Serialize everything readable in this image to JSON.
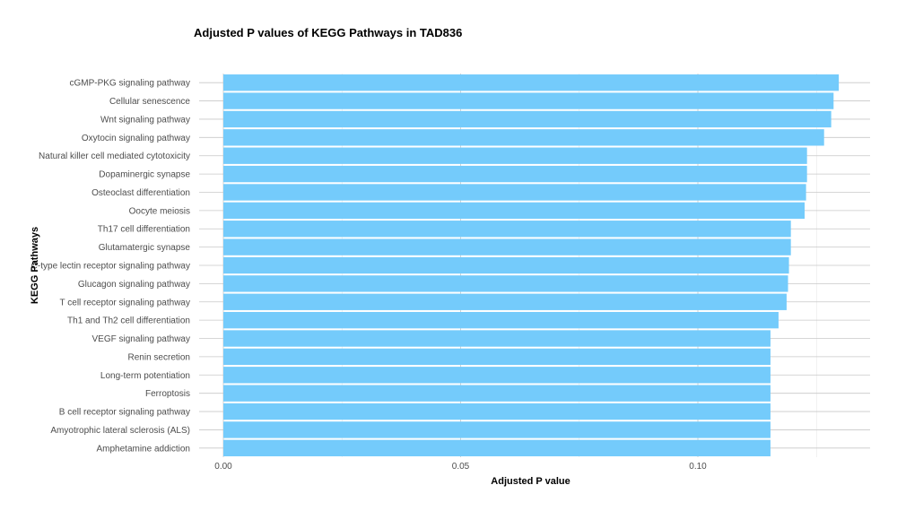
{
  "chart_data": {
    "type": "bar",
    "orientation": "horizontal",
    "title": "Adjusted P values of KEGG Pathways in TAD836",
    "xlabel": "Adjusted P value",
    "ylabel": "KEGG Pathways",
    "xlim": [
      0,
      0.1365
    ],
    "x_ticks": [
      0.0,
      0.05,
      0.1
    ],
    "x_tick_labels": [
      "0.00",
      "0.05",
      "0.10"
    ],
    "grid": true,
    "bar_color": "#74CBFB",
    "categories": [
      "cGMP-PKG signaling pathway",
      "Cellular senescence",
      "Wnt signaling pathway",
      "Oxytocin signaling pathway",
      "Natural killer cell mediated cytotoxicity",
      "Dopaminergic synapse",
      "Osteoclast differentiation",
      "Oocyte meiosis",
      "Th17 cell differentiation",
      "Glutamatergic synapse",
      "C-type lectin receptor signaling pathway",
      "Glucagon signaling pathway",
      "T cell receptor signaling pathway",
      "Th1 and Th2 cell differentiation",
      "VEGF signaling pathway",
      "Renin secretion",
      "Long-term potentiation",
      "Ferroptosis",
      "B cell receptor signaling pathway",
      "Amyotrophic lateral sclerosis (ALS)",
      "Amphetamine addiction"
    ],
    "values": [
      0.1297,
      0.1286,
      0.1281,
      0.1266,
      0.123,
      0.123,
      0.1228,
      0.1225,
      0.1196,
      0.1196,
      0.1192,
      0.119,
      0.1187,
      0.117,
      0.1153,
      0.1153,
      0.1153,
      0.1153,
      0.1153,
      0.1153,
      0.1153
    ]
  }
}
